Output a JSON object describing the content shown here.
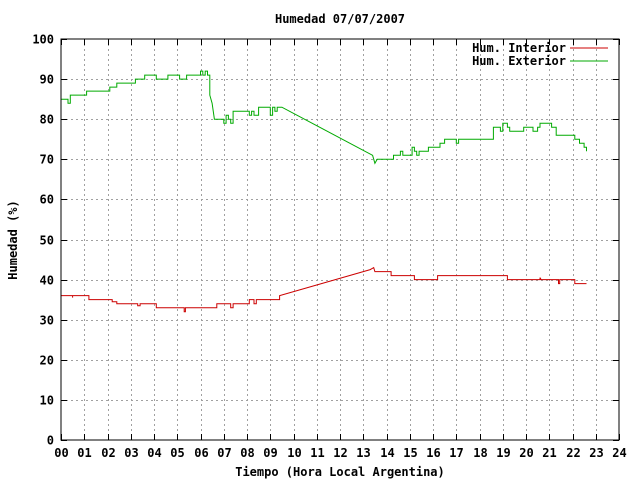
{
  "chart_data": {
    "type": "line",
    "title": "Humedad 07/07/2007",
    "xlabel": "Tiempo (Hora Local Argentina)",
    "ylabel": "Humedad (%)",
    "xlim": [
      0,
      24
    ],
    "ylim": [
      0,
      100
    ],
    "x_ticks": [
      0,
      1,
      2,
      3,
      4,
      5,
      6,
      7,
      8,
      9,
      10,
      11,
      12,
      13,
      14,
      15,
      16,
      17,
      18,
      19,
      20,
      21,
      22,
      23,
      24
    ],
    "x_tick_labels": [
      "00",
      "01",
      "02",
      "03",
      "04",
      "05",
      "06",
      "07",
      "08",
      "09",
      "10",
      "11",
      "12",
      "13",
      "14",
      "15",
      "16",
      "17",
      "18",
      "19",
      "20",
      "21",
      "22",
      "23",
      "24"
    ],
    "y_ticks": [
      0,
      10,
      20,
      30,
      40,
      50,
      60,
      70,
      80,
      90,
      100
    ],
    "y_tick_labels": [
      "0",
      "10",
      "20",
      "30",
      "40",
      "50",
      "60",
      "70",
      "80",
      "90",
      "100"
    ],
    "grid": true,
    "legend_position": "top-right",
    "series": [
      {
        "name": "Hum. Interior",
        "color": "#cc0000",
        "points": [
          [
            0,
            36
          ],
          [
            0.5,
            36
          ],
          [
            0.5,
            35.5
          ],
          [
            0.5,
            36
          ],
          [
            1.2,
            36
          ],
          [
            1.2,
            35
          ],
          [
            2.2,
            35
          ],
          [
            2.2,
            34.5
          ],
          [
            2.4,
            34.5
          ],
          [
            2.4,
            34
          ],
          [
            3.3,
            34
          ],
          [
            3.3,
            33.5
          ],
          [
            3.4,
            33.5
          ],
          [
            3.4,
            34
          ],
          [
            4.1,
            34
          ],
          [
            4.1,
            33
          ],
          [
            5.3,
            33
          ],
          [
            5.3,
            32
          ],
          [
            5.35,
            32
          ],
          [
            5.35,
            33
          ],
          [
            6.7,
            33
          ],
          [
            6.7,
            34
          ],
          [
            7.3,
            34
          ],
          [
            7.3,
            33
          ],
          [
            7.4,
            33
          ],
          [
            7.4,
            34
          ],
          [
            8.1,
            34
          ],
          [
            8.1,
            35
          ],
          [
            8.3,
            35
          ],
          [
            8.3,
            34
          ],
          [
            8.4,
            34
          ],
          [
            8.4,
            35
          ],
          [
            9.4,
            35
          ],
          [
            9.4,
            36
          ],
          [
            13.3,
            42.5
          ],
          [
            13.45,
            43
          ],
          [
            13.5,
            42
          ],
          [
            14.2,
            42
          ],
          [
            14.2,
            41
          ],
          [
            15.2,
            41
          ],
          [
            15.2,
            40
          ],
          [
            16.2,
            40
          ],
          [
            16.2,
            41
          ],
          [
            19.2,
            41
          ],
          [
            19.2,
            40
          ],
          [
            20.6,
            40
          ],
          [
            20.6,
            40.5
          ],
          [
            20.65,
            40
          ],
          [
            21.4,
            40
          ],
          [
            21.4,
            39
          ],
          [
            21.45,
            39
          ],
          [
            21.45,
            40
          ],
          [
            22.1,
            40
          ],
          [
            22.1,
            39
          ],
          [
            22.6,
            39
          ]
        ]
      },
      {
        "name": "Hum. Exterior",
        "color": "#00aa00",
        "points": [
          [
            0,
            85
          ],
          [
            0.3,
            85
          ],
          [
            0.3,
            84
          ],
          [
            0.4,
            84
          ],
          [
            0.4,
            86
          ],
          [
            1.1,
            86
          ],
          [
            1.1,
            87
          ],
          [
            2.1,
            87
          ],
          [
            2.1,
            88
          ],
          [
            2.4,
            88
          ],
          [
            2.4,
            89
          ],
          [
            3.2,
            89
          ],
          [
            3.2,
            90
          ],
          [
            3.6,
            90
          ],
          [
            3.6,
            91
          ],
          [
            4.1,
            91
          ],
          [
            4.1,
            90
          ],
          [
            4.6,
            90
          ],
          [
            4.6,
            91
          ],
          [
            5.1,
            91
          ],
          [
            5.1,
            90
          ],
          [
            5.4,
            90
          ],
          [
            5.4,
            91
          ],
          [
            6.0,
            91
          ],
          [
            6.0,
            92
          ],
          [
            6.1,
            92
          ],
          [
            6.1,
            91
          ],
          [
            6.2,
            91
          ],
          [
            6.2,
            92
          ],
          [
            6.3,
            92
          ],
          [
            6.3,
            91
          ],
          [
            6.4,
            91
          ],
          [
            6.4,
            86
          ],
          [
            6.5,
            84
          ],
          [
            6.6,
            80
          ],
          [
            7.0,
            80
          ],
          [
            7.0,
            79
          ],
          [
            7.1,
            79
          ],
          [
            7.1,
            81
          ],
          [
            7.2,
            81
          ],
          [
            7.2,
            80
          ],
          [
            7.3,
            80
          ],
          [
            7.3,
            79
          ],
          [
            7.4,
            79
          ],
          [
            7.4,
            82
          ],
          [
            8.1,
            82
          ],
          [
            8.1,
            81
          ],
          [
            8.2,
            81
          ],
          [
            8.2,
            82
          ],
          [
            8.3,
            82
          ],
          [
            8.3,
            81
          ],
          [
            8.5,
            81
          ],
          [
            8.5,
            83
          ],
          [
            9.0,
            83
          ],
          [
            9.0,
            81
          ],
          [
            9.1,
            81
          ],
          [
            9.1,
            83
          ],
          [
            9.2,
            83
          ],
          [
            9.2,
            82
          ],
          [
            9.3,
            82
          ],
          [
            9.3,
            83
          ],
          [
            9.5,
            83
          ],
          [
            13.4,
            71
          ],
          [
            13.5,
            69
          ],
          [
            13.6,
            70
          ],
          [
            14.3,
            70
          ],
          [
            14.3,
            71
          ],
          [
            14.6,
            71
          ],
          [
            14.6,
            72
          ],
          [
            14.7,
            72
          ],
          [
            14.7,
            71
          ],
          [
            15.1,
            71
          ],
          [
            15.1,
            73
          ],
          [
            15.2,
            73
          ],
          [
            15.2,
            72
          ],
          [
            15.3,
            72
          ],
          [
            15.3,
            71
          ],
          [
            15.4,
            71
          ],
          [
            15.4,
            72
          ],
          [
            15.8,
            72
          ],
          [
            15.8,
            73
          ],
          [
            16.3,
            73
          ],
          [
            16.3,
            74
          ],
          [
            16.5,
            74
          ],
          [
            16.5,
            75
          ],
          [
            17.0,
            75
          ],
          [
            17.0,
            74
          ],
          [
            17.1,
            74
          ],
          [
            17.1,
            75
          ],
          [
            18.6,
            75
          ],
          [
            18.6,
            78
          ],
          [
            18.9,
            78
          ],
          [
            18.9,
            77
          ],
          [
            19.0,
            77
          ],
          [
            19.0,
            79
          ],
          [
            19.2,
            79
          ],
          [
            19.2,
            78
          ],
          [
            19.3,
            78
          ],
          [
            19.3,
            77
          ],
          [
            19.9,
            77
          ],
          [
            19.9,
            78
          ],
          [
            20.3,
            78
          ],
          [
            20.3,
            77
          ],
          [
            20.5,
            77
          ],
          [
            20.5,
            78
          ],
          [
            20.6,
            78
          ],
          [
            20.6,
            79
          ],
          [
            21.1,
            79
          ],
          [
            21.1,
            78
          ],
          [
            21.3,
            78
          ],
          [
            21.3,
            76
          ],
          [
            22.1,
            76
          ],
          [
            22.1,
            75
          ],
          [
            22.3,
            75
          ],
          [
            22.3,
            74
          ],
          [
            22.5,
            74
          ],
          [
            22.5,
            73
          ],
          [
            22.6,
            73
          ],
          [
            22.6,
            72
          ]
        ]
      }
    ]
  }
}
